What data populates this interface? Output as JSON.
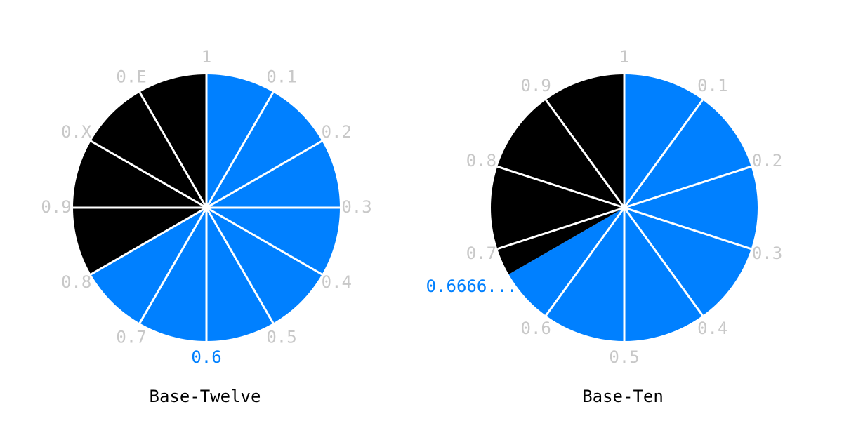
{
  "circles": [
    {
      "title": "Base-Twelve",
      "labels": [
        "1",
        "0.1",
        "0.2",
        "0.3",
        "0.4",
        "0.5",
        null,
        "0.7",
        "0.8",
        "0.9",
        "0.X",
        "0.E"
      ],
      "filled": 8,
      "highlight": {
        "position": 6,
        "label": "0.6"
      }
    },
    {
      "title": "Base-Ten",
      "labels": [
        "1",
        "0.1",
        "0.2",
        "0.3",
        "0.4",
        "0.5",
        "0.6",
        "0.7",
        "0.8",
        "0.9"
      ],
      "filled": 6.6667,
      "highlight": {
        "position": 6.6667,
        "label": "0.6666..."
      }
    }
  ],
  "colors": {
    "filled": "#0080ff",
    "empty": "#000000",
    "label": "#c8c8c8",
    "highlight": "#0080ff"
  }
}
